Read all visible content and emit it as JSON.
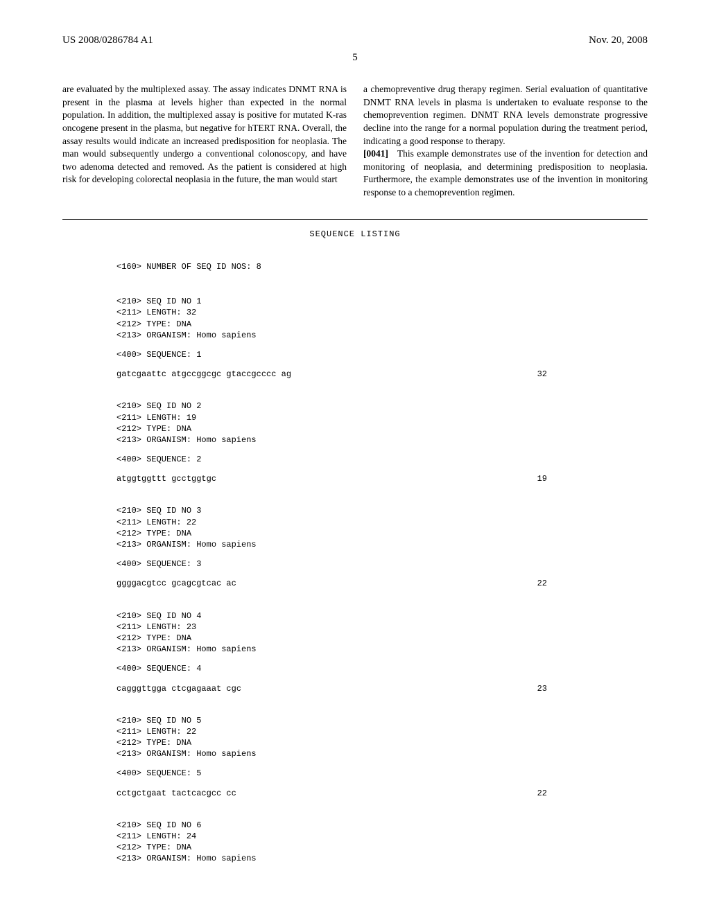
{
  "header": {
    "pub_number": "US 2008/0286784 A1",
    "pub_date": "Nov. 20, 2008"
  },
  "page_number": "5",
  "columns": {
    "left": "are evaluated by the multiplexed assay. The assay indicates DNMT RNA is present in the plasma at levels higher than expected in the normal population. In addition, the multiplexed assay is positive for mutated K-ras oncogene present in the plasma, but negative for hTERT RNA. Overall, the assay results would indicate an increased predisposition for neoplasia. The man would subsequently undergo a conventional colonoscopy, and have two adenoma detected and removed. As the patient is considered at high risk for developing colorectal neoplasia in the future, the man would start",
    "right_p1": "a chemopreventive drug therapy regimen. Serial evaluation of quantitative DNMT RNA levels in plasma is undertaken to evaluate response to the chemoprevention regimen. DNMT RNA levels demonstrate progressive decline into the range for a normal population during the treatment period, indicating a good response to therapy.",
    "right_p2_num": "[0041]",
    "right_p2": "This example demonstrates use of the invention for detection and monitoring of neoplasia, and determining predisposition to neoplasia. Furthermore, the example demonstrates use of the invention in monitoring response to a chemoprevention regimen."
  },
  "seq_listing": {
    "title": "SEQUENCE LISTING",
    "count_line": "<160> NUMBER OF SEQ ID NOS: 8",
    "entries": [
      {
        "h1": "<210> SEQ ID NO 1",
        "h2": "<211> LENGTH: 32",
        "h3": "<212> TYPE: DNA",
        "h4": "<213> ORGANISM: Homo sapiens",
        "h5": "<400> SEQUENCE: 1",
        "seq": "gatcgaattc atgccggcgc gtaccgcccc ag",
        "len": "32"
      },
      {
        "h1": "<210> SEQ ID NO 2",
        "h2": "<211> LENGTH: 19",
        "h3": "<212> TYPE: DNA",
        "h4": "<213> ORGANISM: Homo sapiens",
        "h5": "<400> SEQUENCE: 2",
        "seq": "atggtggttt gcctggtgc",
        "len": "19"
      },
      {
        "h1": "<210> SEQ ID NO 3",
        "h2": "<211> LENGTH: 22",
        "h3": "<212> TYPE: DNA",
        "h4": "<213> ORGANISM: Homo sapiens",
        "h5": "<400> SEQUENCE: 3",
        "seq": "ggggacgtcc gcagcgtcac ac",
        "len": "22"
      },
      {
        "h1": "<210> SEQ ID NO 4",
        "h2": "<211> LENGTH: 23",
        "h3": "<212> TYPE: DNA",
        "h4": "<213> ORGANISM: Homo sapiens",
        "h5": "<400> SEQUENCE: 4",
        "seq": "cagggttgga ctcgagaaat cgc",
        "len": "23"
      },
      {
        "h1": "<210> SEQ ID NO 5",
        "h2": "<211> LENGTH: 22",
        "h3": "<212> TYPE: DNA",
        "h4": "<213> ORGANISM: Homo sapiens",
        "h5": "<400> SEQUENCE: 5",
        "seq": "cctgctgaat tactcacgcc cc",
        "len": "22"
      },
      {
        "h1": "<210> SEQ ID NO 6",
        "h2": "<211> LENGTH: 24",
        "h3": "<212> TYPE: DNA",
        "h4": "<213> ORGANISM: Homo sapiens",
        "h5": "",
        "seq": "",
        "len": ""
      }
    ]
  }
}
